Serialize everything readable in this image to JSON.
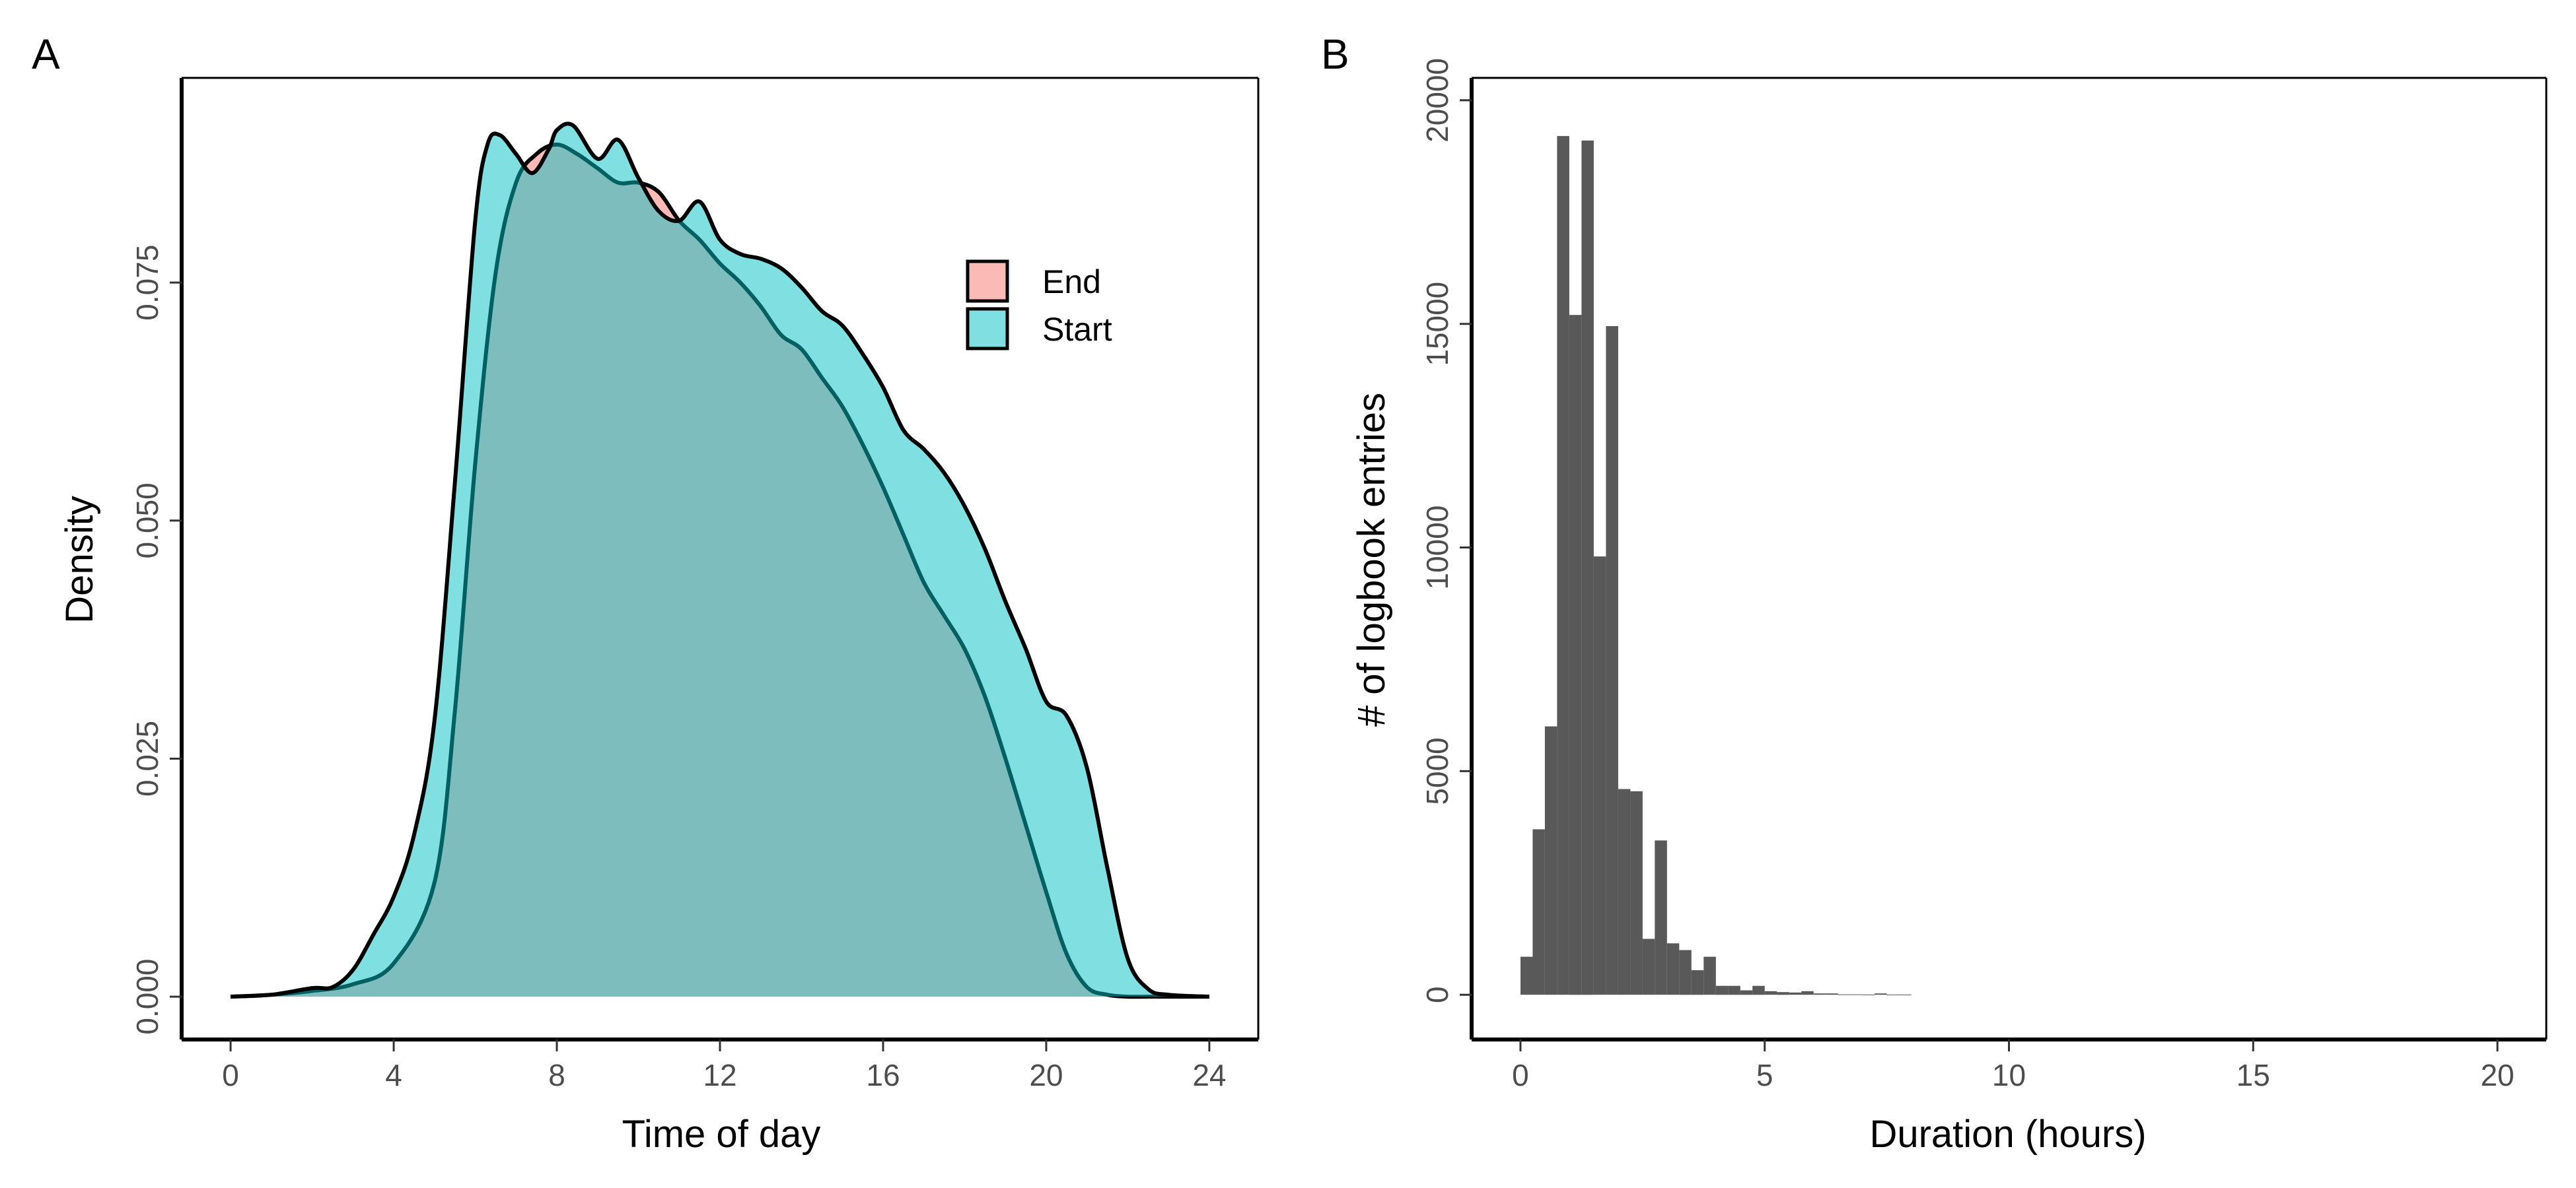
{
  "colors": {
    "end": "#F8766D",
    "start": "#00BFC4",
    "hist": "#595959",
    "outline": "#000000"
  },
  "chart_data": [
    {
      "panel": "A",
      "type": "area",
      "title": "",
      "xlabel": "Time of day",
      "ylabel": "Density",
      "xlim": [
        -1.2,
        25.2
      ],
      "ylim": [
        -0.0045,
        0.0965
      ],
      "xticks": [
        0,
        4,
        8,
        12,
        16,
        20,
        24
      ],
      "xtick_labels": [
        "0",
        "4",
        "8",
        "12",
        "16",
        "20",
        "24"
      ],
      "yticks": [
        0.0,
        0.025,
        0.05,
        0.075
      ],
      "ytick_labels": [
        "0.000",
        "0.025",
        "0.050",
        "0.075"
      ],
      "grid": false,
      "legend": {
        "position": "top-right",
        "entries": [
          "End",
          "Start"
        ]
      },
      "series": [
        {
          "name": "End",
          "x": [
            0,
            1,
            2,
            3,
            4,
            5,
            5.5,
            6,
            6.5,
            7,
            7.5,
            8,
            8.5,
            9,
            9.5,
            10,
            10.5,
            11,
            11.5,
            12,
            12.5,
            13,
            13.5,
            14,
            14.5,
            15,
            15.5,
            16,
            16.5,
            17,
            17.5,
            18,
            18.5,
            19,
            19.5,
            20,
            20.5,
            21,
            21.5,
            22,
            22.5,
            23,
            24
          ],
          "y": [
            0.0,
            0.0002,
            0.0006,
            0.0013,
            0.0035,
            0.012,
            0.03,
            0.056,
            0.076,
            0.0855,
            0.0885,
            0.0895,
            0.0885,
            0.087,
            0.0855,
            0.0855,
            0.0845,
            0.0815,
            0.0795,
            0.077,
            0.075,
            0.0725,
            0.0695,
            0.068,
            0.065,
            0.062,
            0.058,
            0.0535,
            0.0485,
            0.0435,
            0.04,
            0.0365,
            0.0315,
            0.025,
            0.018,
            0.011,
            0.0045,
            0.001,
            0.0002,
            0.0,
            0.0,
            0.0,
            0.0
          ]
        },
        {
          "name": "Start",
          "x": [
            0,
            1,
            2,
            2.5,
            3,
            3.5,
            4,
            4.5,
            5,
            5.5,
            6,
            6.3,
            6.6,
            7,
            7.4,
            7.8,
            8,
            8.4,
            9,
            9.5,
            10,
            10.5,
            11,
            11.5,
            12,
            12.5,
            13,
            13.5,
            14,
            14.5,
            15,
            15.5,
            16,
            16.5,
            17,
            17.5,
            18,
            18.5,
            19,
            19.5,
            20,
            20.5,
            21,
            21.5,
            22,
            22.5,
            23,
            24
          ],
          "y": [
            0.0,
            0.0002,
            0.0009,
            0.001,
            0.0028,
            0.0065,
            0.0105,
            0.017,
            0.029,
            0.054,
            0.0815,
            0.0895,
            0.0905,
            0.0885,
            0.0865,
            0.089,
            0.091,
            0.0915,
            0.088,
            0.09,
            0.086,
            0.0825,
            0.0815,
            0.0835,
            0.0795,
            0.078,
            0.0775,
            0.0765,
            0.0745,
            0.072,
            0.0705,
            0.0675,
            0.064,
            0.0595,
            0.0575,
            0.055,
            0.0515,
            0.047,
            0.0415,
            0.0365,
            0.031,
            0.0295,
            0.024,
            0.0135,
            0.004,
            0.0008,
            0.0002,
            0.0
          ]
        }
      ]
    },
    {
      "panel": "B",
      "type": "bar",
      "title": "",
      "xlabel": "Duration (hours)",
      "ylabel": "# of logbook entries",
      "xlim": [
        -1.0,
        21.0
      ],
      "ylim": [
        -1000,
        20500
      ],
      "xticks": [
        0,
        5,
        10,
        15,
        20
      ],
      "xtick_labels": [
        "0",
        "5",
        "10",
        "15",
        "20"
      ],
      "yticks": [
        0,
        5000,
        10000,
        15000,
        20000
      ],
      "ytick_labels": [
        "0",
        "5000",
        "10000",
        "15000",
        "20000"
      ],
      "grid": false,
      "bin_width": 0.25,
      "bin_start": 0,
      "values": [
        850,
        3700,
        6000,
        19200,
        15200,
        19100,
        9800,
        14950,
        4600,
        4550,
        1250,
        3450,
        1150,
        1000,
        550,
        850,
        200,
        200,
        100,
        200,
        80,
        60,
        50,
        80,
        30,
        30,
        10,
        10,
        5,
        30,
        5,
        5
      ]
    }
  ]
}
